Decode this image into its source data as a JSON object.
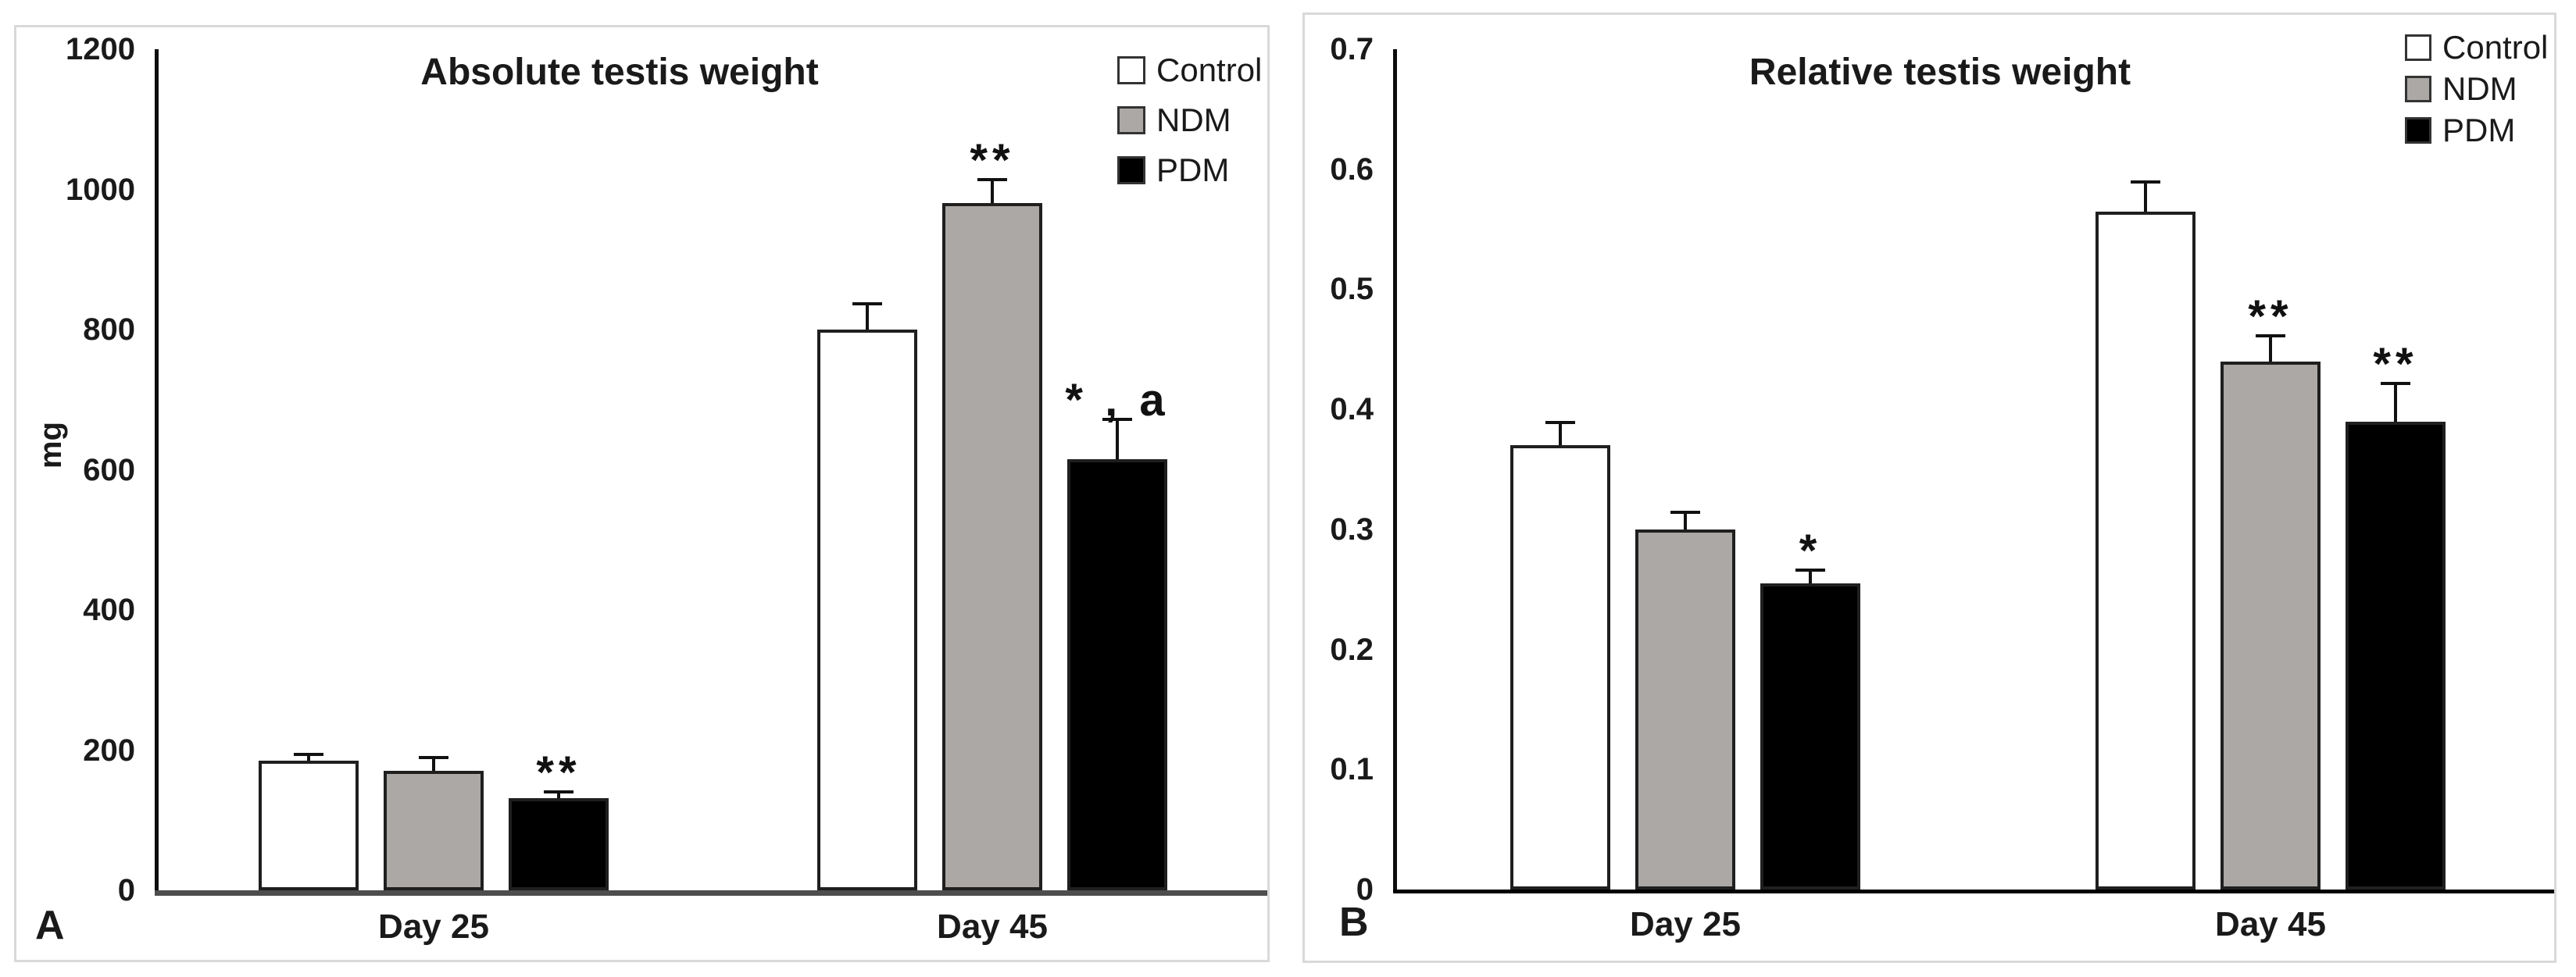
{
  "figure": {
    "panel_letters": [
      "A",
      "B"
    ],
    "background": "#ffffff",
    "panel_border_color": "#d9d9d9"
  },
  "chart_data": [
    {
      "type": "bar",
      "panel_label": "A",
      "title": "Absolute testis weight",
      "xlabel": "",
      "ylabel": "mg",
      "ylim": [
        0,
        1200
      ],
      "ytick_step": 200,
      "ytick_labels": [
        "1200",
        "1000",
        "800",
        "600",
        "400",
        "200",
        "0"
      ],
      "categories": [
        "Day 25",
        "Day 45"
      ],
      "grid": false,
      "legend_position": "top-right",
      "series": [
        {
          "name": "Control",
          "fill": "#ffffff",
          "values": [
            185,
            800
          ],
          "errors": [
            10,
            38
          ],
          "annotations": [
            "",
            ""
          ]
        },
        {
          "name": "NDM",
          "fill": "#aba8a5",
          "values": [
            171,
            980
          ],
          "errors": [
            20,
            35
          ],
          "annotations": [
            "",
            "**"
          ]
        },
        {
          "name": "PDM",
          "fill": "#000000",
          "values": [
            132,
            615
          ],
          "errors": [
            10,
            58
          ],
          "annotations": [
            "**",
            "* , a"
          ]
        }
      ]
    },
    {
      "type": "bar",
      "panel_label": "B",
      "title": "Relative testis weight",
      "xlabel": "",
      "ylabel": "",
      "ylim": [
        0,
        0.7
      ],
      "ytick_step": 0.1,
      "ytick_labels": [
        "0.7",
        "0.6",
        "0.5",
        "0.4",
        "0.3",
        "0.2",
        "0.1",
        "0"
      ],
      "categories": [
        "Day 25",
        "Day 45"
      ],
      "grid": false,
      "legend_position": "top-right",
      "series": [
        {
          "name": "Control",
          "fill": "#ffffff",
          "values": [
            0.37,
            0.565
          ],
          "errors": [
            0.02,
            0.025
          ],
          "annotations": [
            "",
            ""
          ]
        },
        {
          "name": "NDM",
          "fill": "#aba8a5",
          "values": [
            0.3,
            0.44
          ],
          "errors": [
            0.015,
            0.022
          ],
          "annotations": [
            "",
            "**"
          ]
        },
        {
          "name": "PDM",
          "fill": "#000000",
          "values": [
            0.255,
            0.39
          ],
          "errors": [
            0.012,
            0.032
          ],
          "annotations": [
            "*",
            "**"
          ]
        }
      ]
    }
  ]
}
